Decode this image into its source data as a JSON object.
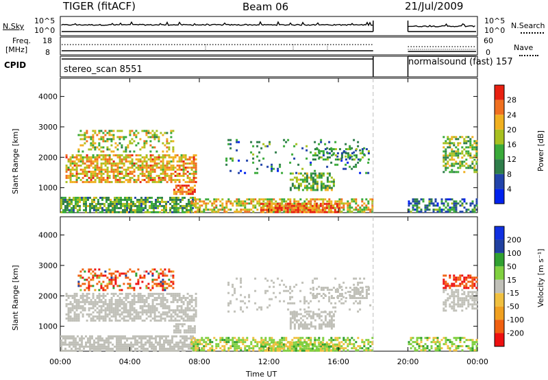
{
  "header": {
    "title": "TIGER (fitACF)",
    "beam": "Beam 06",
    "date": "21/Jul/2009"
  },
  "strip_labels": {
    "nsky": "N.Sky",
    "nsky_ticks": [
      "10^5",
      "10^0"
    ],
    "nsearch": "N.Search",
    "freq": "Freq.",
    "freq_unit": "[MHz]",
    "freq_ticks": [
      "18",
      "8"
    ],
    "nave": "Nave",
    "nave_ticks": [
      "60",
      "0"
    ],
    "cpid": "CPID",
    "cpid_segments": [
      {
        "label": "stereo_scan 8551",
        "start": "00:00",
        "end": "18:00"
      },
      {
        "label": "normalsound (fast) 157",
        "start": "20:00",
        "end": "00:00"
      }
    ]
  },
  "chart_data": [
    {
      "type": "heatmap",
      "name": "power",
      "xlabel": "",
      "ylabel": "Slant Range [km]",
      "x_range_hours": [
        0,
        24
      ],
      "ylim": [
        180,
        4600
      ],
      "yticks": [
        1000,
        2000,
        3000,
        4000
      ],
      "colorbar_label": "Power [dB]",
      "colorbar_ticks": [
        4,
        8,
        12,
        16,
        20,
        24,
        28
      ],
      "colorbar_range": [
        0,
        32
      ],
      "colors": [
        "#0022ee",
        "#2244aa",
        "#2e7d4a",
        "#3aaa3a",
        "#a8c020",
        "#f0b020",
        "#f07020",
        "#e82010"
      ],
      "data_gap_hours": [
        18,
        20
      ]
    },
    {
      "type": "heatmap",
      "name": "velocity",
      "xlabel": "Time UT",
      "ylabel": "Slant Range [km]",
      "x_range_hours": [
        0,
        24
      ],
      "xticks": [
        "00:00",
        "04:00",
        "08:00",
        "12:00",
        "16:00",
        "20:00",
        "00:00"
      ],
      "ylim": [
        180,
        4600
      ],
      "yticks": [
        1000,
        2000,
        3000,
        4000
      ],
      "colorbar_label": "Velocity [m s⁻¹]",
      "colorbar_ticks": [
        -200,
        -100,
        -50,
        -15,
        15,
        50,
        100,
        200
      ],
      "colors": [
        "#ee1010",
        "#f06010",
        "#f0a020",
        "#f0c040",
        "#c0c0b8",
        "#80d040",
        "#30a030",
        "#2040a0",
        "#1030e0"
      ],
      "data_gap_hours": [
        18,
        20
      ]
    }
  ]
}
